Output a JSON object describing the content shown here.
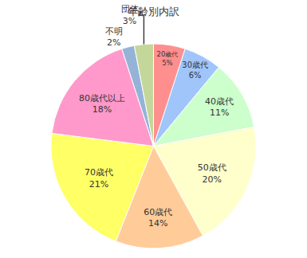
{
  "chart_data": {
    "type": "pie",
    "title": "年齢別内訳",
    "categories": [
      "20歳代",
      "30歳代",
      "40歳代",
      "50歳代",
      "60歳代",
      "70歳代",
      "80歳代以上",
      "不明",
      "団体"
    ],
    "values": [
      5,
      6,
      11,
      20,
      14,
      21,
      18,
      2,
      3
    ],
    "value_labels": [
      "5%",
      "6%",
      "11%",
      "20%",
      "14%",
      "21%",
      "18%",
      "2%",
      "3%"
    ],
    "colors": [
      "#ff8f8f",
      "#9fc5fb",
      "#ccffcc",
      "#ffffcc",
      "#ffcc99",
      "#ffff66",
      "#ff99cc",
      "#95b3d7",
      "#c4d79b"
    ],
    "data_labels": true
  }
}
